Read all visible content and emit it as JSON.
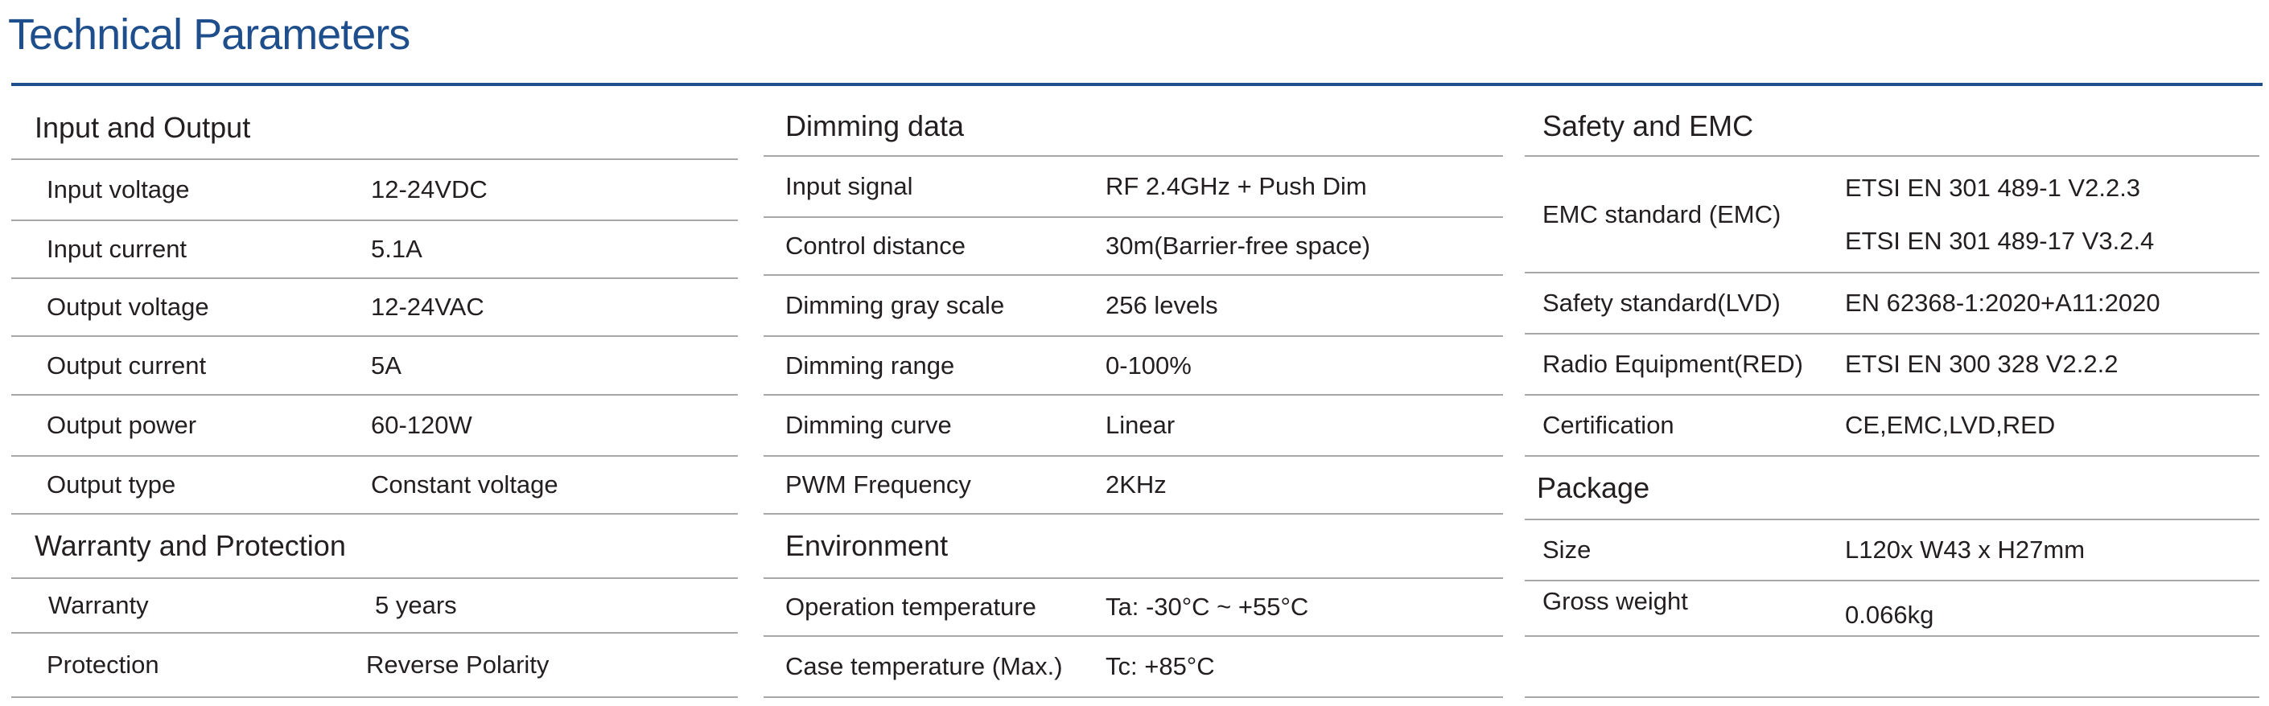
{
  "title": "Technical Parameters",
  "columns": [
    {
      "sections": [
        {
          "heading": "Input and Output",
          "rows": [
            {
              "label": "Input voltage",
              "value": "12-24VDC"
            },
            {
              "label": "Input current",
              "value": "5.1A"
            },
            {
              "label": "Output voltage",
              "value": "12-24VAC"
            },
            {
              "label": "Output current",
              "value": "5A"
            },
            {
              "label": "Output power",
              "value": "60-120W"
            },
            {
              "label": "Output type",
              "value": "Constant voltage"
            }
          ]
        },
        {
          "heading": "Warranty and Protection",
          "rows": [
            {
              "label": "Warranty",
              "value": "5 years"
            },
            {
              "label": "Protection",
              "value": "Reverse Polarity"
            }
          ]
        }
      ]
    },
    {
      "sections": [
        {
          "heading": "Dimming data",
          "rows": [
            {
              "label": "Input signal",
              "value": "RF 2.4GHz + Push Dim"
            },
            {
              "label": "Control distance",
              "value": "30m(Barrier-free space)"
            },
            {
              "label": "Dimming gray scale",
              "value": "256 levels"
            },
            {
              "label": "Dimming range",
              "value": "0-100%"
            },
            {
              "label": "Dimming curve",
              "value": "Linear"
            },
            {
              "label": "PWM Frequency",
              "value": "2KHz"
            }
          ]
        },
        {
          "heading": "Environment",
          "rows": [
            {
              "label": "Operation temperature",
              "value": "Ta: -30°C ~ +55°C"
            },
            {
              "label": "Case temperature (Max.)",
              "value": "Tc: +85°C"
            }
          ]
        }
      ]
    },
    {
      "sections": [
        {
          "heading": "Safety and EMC",
          "rows": [
            {
              "label": "EMC standard (EMC)",
              "values": [
                "ETSI EN 301 489-1 V2.2.3",
                "ETSI EN 301 489-17 V3.2.4"
              ]
            },
            {
              "label": "Safety standard(LVD)",
              "value": "EN 62368-1:2020+A11:2020"
            },
            {
              "label": "Radio Equipment(RED)",
              "value": "ETSI EN 300 328 V2.2.2"
            },
            {
              "label": "Certification",
              "value": "CE,EMC,LVD,RED"
            }
          ]
        },
        {
          "heading": "Package",
          "rows": [
            {
              "label": "Size",
              "value": "L120x W43 x H27mm"
            },
            {
              "label": "Gross weight",
              "value": "0.066kg"
            }
          ]
        }
      ]
    }
  ],
  "colors": {
    "accent": "#1f4e8c",
    "text": "#231f20",
    "divider": "#a7a7a7"
  }
}
